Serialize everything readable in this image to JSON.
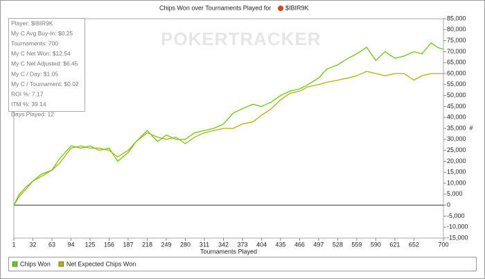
{
  "chart_data": {
    "type": "line",
    "title": "Chips Won over Tournaments Played for",
    "player": "$IBIR9K",
    "watermark": "POKERTRACKER",
    "x_label": "Tournaments Played",
    "y_label": "#",
    "stats": [
      "Player: $IBIR9K",
      "My C Avg Buy-In: $0.25",
      "Tournaments: 700",
      "My C Net Won: $12.54",
      "My C Net Adjusted: $6.45",
      "My C / Day: $1.05",
      "My C / Tournament: $0.02",
      "ROI %: 7.17",
      "ITM %: 39.14",
      "Days Played: 12"
    ],
    "x": [
      1,
      10,
      20,
      32,
      45,
      63,
      75,
      94,
      110,
      125,
      140,
      156,
      170,
      187,
      200,
      218,
      235,
      249,
      265,
      280,
      295,
      311,
      326,
      342,
      358,
      373,
      390,
      404,
      420,
      435,
      450,
      466,
      480,
      497,
      510,
      528,
      545,
      559,
      575,
      590,
      605,
      621,
      636,
      652,
      665,
      680,
      690,
      700
    ],
    "series": [
      {
        "name": "Chips Won",
        "color": "#66cc11",
        "values": [
          0,
          5000,
          8000,
          11000,
          14000,
          16000,
          21000,
          27000,
          26000,
          27000,
          25000,
          26000,
          20000,
          24000,
          29000,
          34000,
          29000,
          32000,
          30000,
          30000,
          33000,
          34000,
          35000,
          37000,
          42000,
          44000,
          46000,
          45000,
          47000,
          50000,
          52000,
          53000,
          55000,
          58000,
          62000,
          64000,
          67000,
          69000,
          72000,
          66000,
          70000,
          67000,
          68000,
          70000,
          69000,
          74000,
          72000,
          71000
        ]
      },
      {
        "name": "Net Expected Chips Won",
        "color": "#b5b000",
        "values": [
          0,
          4000,
          7000,
          11000,
          13000,
          16000,
          19000,
          26000,
          27000,
          26000,
          26000,
          25000,
          22000,
          25000,
          29000,
          33000,
          31000,
          30000,
          31000,
          28000,
          31000,
          33000,
          34000,
          35000,
          35000,
          37000,
          38000,
          41000,
          44000,
          48000,
          51000,
          52000,
          54000,
          55000,
          56000,
          57000,
          58000,
          59000,
          61000,
          60000,
          59000,
          60000,
          60000,
          57000,
          59000,
          60000,
          60000,
          60000
        ]
      }
    ],
    "xlim": [
      1,
      700
    ],
    "xticks": [
      1,
      32,
      63,
      94,
      125,
      156,
      187,
      218,
      249,
      280,
      311,
      342,
      373,
      404,
      435,
      466,
      497,
      528,
      559,
      590,
      621,
      652,
      700
    ],
    "ylim": [
      -15000,
      85000
    ],
    "yticks": [
      {
        "value": -15000,
        "label": "-15,000"
      },
      {
        "value": -10000,
        "label": "-10,000"
      },
      {
        "value": -5000,
        "label": "-5,000"
      },
      0,
      {
        "value": 5000,
        "label": "5,000"
      },
      {
        "value": 10000,
        "label": "10,000"
      },
      {
        "value": 15000,
        "label": "15,000"
      },
      {
        "value": 20000,
        "label": "20,000"
      },
      {
        "value": 25000,
        "label": "25,000"
      },
      {
        "value": 30000,
        "label": "30,000"
      },
      {
        "value": 35000,
        "label": "35,000"
      },
      {
        "value": 40000,
        "label": "40,000"
      },
      {
        "value": 45000,
        "label": "45,000"
      },
      {
        "value": 50000,
        "label": "50,000"
      },
      {
        "value": 55000,
        "label": "55,000"
      },
      {
        "value": 60000,
        "label": "60,000"
      },
      {
        "value": 65000,
        "label": "65,000"
      },
      {
        "value": 70000,
        "label": "70,000"
      },
      {
        "value": 75000,
        "label": "75,000"
      },
      {
        "value": 80000,
        "label": "80,000"
      },
      {
        "value": 85000,
        "label": "85,000"
      }
    ]
  }
}
